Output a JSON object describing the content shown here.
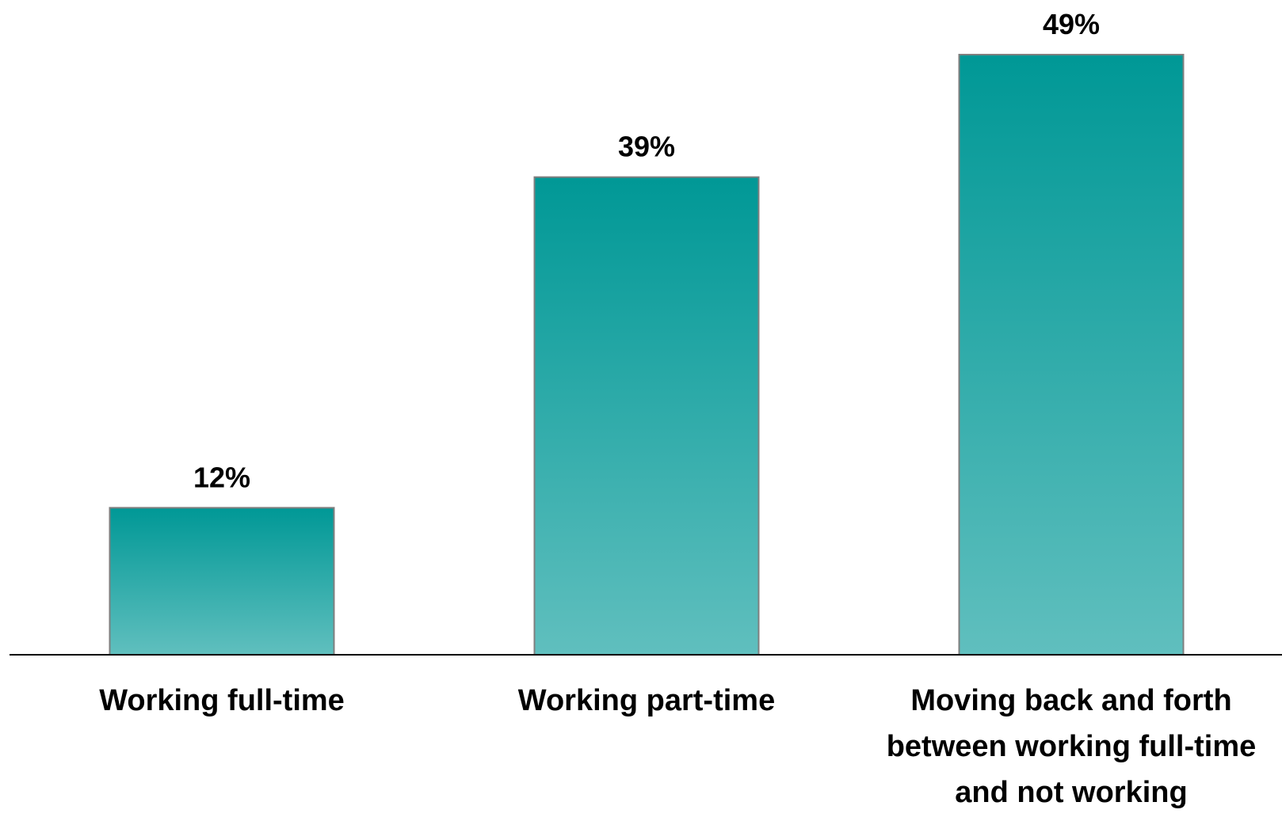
{
  "chart_data": {
    "type": "bar",
    "categories": [
      [
        "Working full-time"
      ],
      [
        "Working part-time"
      ],
      [
        "Moving back and forth",
        "between working full-time",
        "and not working"
      ]
    ],
    "values": [
      12,
      39,
      49
    ],
    "value_labels": [
      "12%",
      "39%",
      "49%"
    ],
    "unit": "%",
    "title": "",
    "xlabel": "",
    "ylabel": "",
    "ylim": [
      0,
      49
    ],
    "grid": false,
    "legend": "none",
    "colors": {
      "bar_top": "#009896",
      "bar_bottom": "#60bfbe",
      "bar_border": "#7f7f7f",
      "axis": "#000000"
    }
  }
}
